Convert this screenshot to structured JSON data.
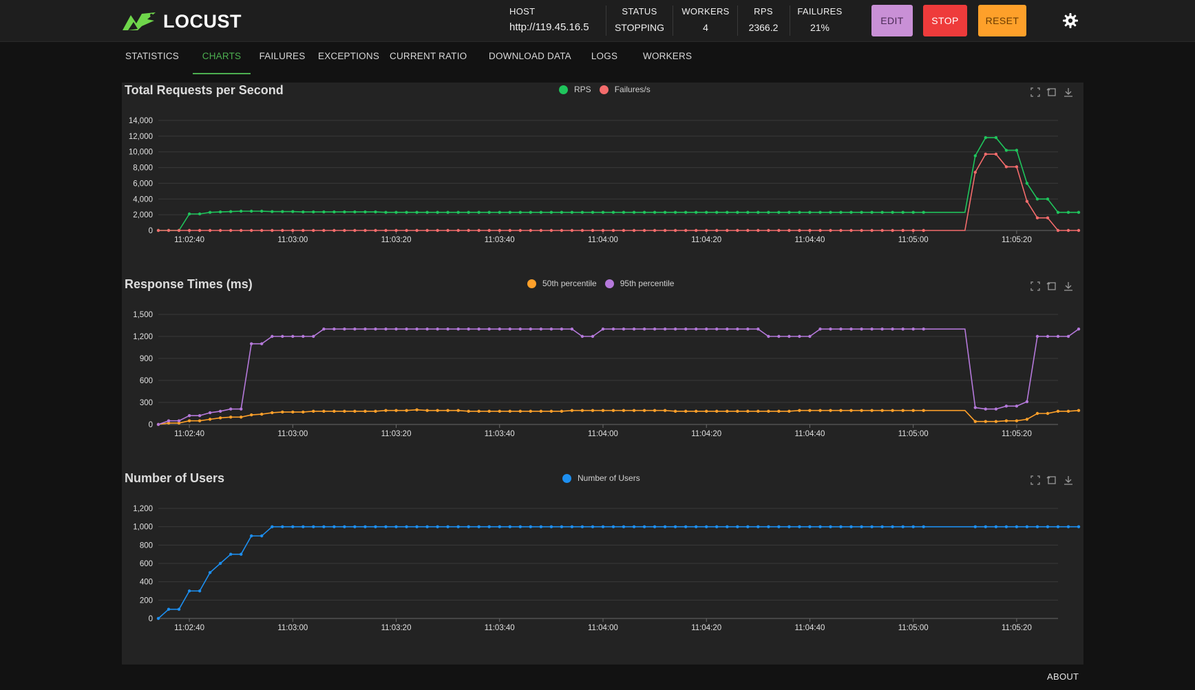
{
  "app": {
    "name": "LOCUST",
    "logo_icon": "locust-grasshopper-icon",
    "brand_color": "#6fd64b"
  },
  "header": {
    "stats": [
      {
        "label": "HOST",
        "value": "http://119.45.16.5"
      },
      {
        "label": "STATUS",
        "value": "STOPPING"
      },
      {
        "label": "WORKERS",
        "value": "4"
      },
      {
        "label": "RPS",
        "value": "2366.2"
      },
      {
        "label": "FAILURES",
        "value": "21%"
      }
    ],
    "buttons": {
      "edit": {
        "label": "EDIT",
        "color": "#c990d6"
      },
      "stop": {
        "label": "STOP",
        "color": "#ee3b3b"
      },
      "reset": {
        "label": "RESET",
        "color": "#fea02a"
      }
    },
    "theme_icon": "gear-icon"
  },
  "tabs": [
    {
      "label": "STATISTICS",
      "active": false
    },
    {
      "label": "CHARTS",
      "active": true
    },
    {
      "label": "FAILURES",
      "active": false
    },
    {
      "label": "EXCEPTIONS",
      "active": false
    },
    {
      "label": "CURRENT RATIO",
      "active": false
    },
    {
      "label": "DOWNLOAD DATA",
      "active": false
    },
    {
      "label": "LOGS",
      "active": false
    },
    {
      "label": "WORKERS",
      "active": false
    }
  ],
  "toolbox_icons": [
    "zoom-icon",
    "zoom-reset-icon",
    "download-icon"
  ],
  "footer": {
    "about_label": "ABOUT"
  },
  "chart_data": [
    {
      "type": "line",
      "title": "Total Requests per Second",
      "x_tick_labels": [
        "11:02:40",
        "11:03:00",
        "11:03:20",
        "11:03:40",
        "11:04:00",
        "11:04:20",
        "11:04:40",
        "11:05:00",
        "11:05:20"
      ],
      "x_start": "11:02:34",
      "x_end": "11:05:28",
      "x_interval_seconds": 2,
      "ylim": [
        0,
        14000
      ],
      "y_ticks": [
        "0",
        "2,000",
        "4,000",
        "6,000",
        "8,000",
        "10,000",
        "12,000",
        "14,000"
      ],
      "grid": true,
      "legend_position": "top-center",
      "gap": [
        "11:05:02",
        "11:05:12"
      ],
      "series": [
        {
          "name": "RPS",
          "color": "#1fc55c",
          "values": [
            0,
            0,
            0,
            2100,
            2100,
            2300,
            2350,
            2400,
            2450,
            2450,
            2450,
            2400,
            2400,
            2400,
            2350,
            2350,
            2350,
            2350,
            2350,
            2350,
            2350,
            2350,
            2300,
            2300,
            2300,
            2300,
            2300,
            2300,
            2300,
            2300,
            2300,
            2300,
            2300,
            2300,
            2300,
            2300,
            2300,
            2300,
            2300,
            2300,
            2300,
            2300,
            2300,
            2300,
            2300,
            2300,
            2300,
            2300,
            2300,
            2300,
            2300,
            2300,
            2300,
            2300,
            2300,
            2300,
            2300,
            2300,
            2300,
            2300,
            2300,
            2300,
            2300,
            2300,
            2300,
            2300,
            2300,
            2300,
            2300,
            2300,
            2300,
            2300,
            2300,
            2300,
            2300,
            2300,
            2300,
            2300,
            2300,
            9500,
            11800,
            11800,
            10200,
            10200,
            6000,
            4000,
            4000,
            2300,
            2300,
            2300
          ]
        },
        {
          "name": "Failures/s",
          "color": "#f46c6c",
          "values": [
            0,
            0,
            0,
            0,
            0,
            0,
            0,
            0,
            0,
            0,
            0,
            0,
            0,
            0,
            0,
            0,
            0,
            0,
            0,
            0,
            0,
            0,
            0,
            0,
            0,
            0,
            0,
            0,
            0,
            0,
            0,
            0,
            0,
            0,
            0,
            0,
            0,
            0,
            0,
            0,
            0,
            0,
            0,
            0,
            0,
            0,
            0,
            0,
            0,
            0,
            0,
            0,
            0,
            0,
            0,
            0,
            0,
            0,
            0,
            0,
            0,
            0,
            0,
            0,
            0,
            0,
            0,
            0,
            0,
            0,
            0,
            0,
            0,
            0,
            0,
            0,
            0,
            0,
            0,
            7400,
            9700,
            9700,
            8100,
            8100,
            3700,
            1600,
            1600,
            0,
            0,
            0
          ]
        }
      ]
    },
    {
      "type": "line",
      "title": "Response Times (ms)",
      "x_tick_labels": [
        "11:02:40",
        "11:03:00",
        "11:03:20",
        "11:03:40",
        "11:04:00",
        "11:04:20",
        "11:04:40",
        "11:05:00",
        "11:05:20"
      ],
      "x_start": "11:02:34",
      "x_end": "11:05:28",
      "x_interval_seconds": 2,
      "ylim": [
        0,
        1500
      ],
      "y_ticks": [
        "0",
        "300",
        "600",
        "900",
        "1,200",
        "1,500"
      ],
      "grid": true,
      "legend_position": "top-center",
      "gap": [
        "11:05:02",
        "11:05:12"
      ],
      "series": [
        {
          "name": "50th percentile",
          "color": "#fea02a",
          "values": [
            0,
            20,
            20,
            50,
            50,
            70,
            90,
            100,
            100,
            130,
            140,
            160,
            170,
            170,
            170,
            180,
            180,
            180,
            180,
            180,
            180,
            180,
            190,
            190,
            190,
            200,
            190,
            190,
            190,
            190,
            180,
            180,
            180,
            180,
            180,
            180,
            180,
            180,
            180,
            180,
            190,
            190,
            190,
            190,
            190,
            190,
            190,
            190,
            190,
            190,
            180,
            180,
            180,
            180,
            180,
            180,
            180,
            180,
            180,
            180,
            180,
            180,
            190,
            190,
            190,
            190,
            190,
            190,
            190,
            190,
            190,
            190,
            190,
            190,
            190,
            190,
            190,
            190,
            190,
            40,
            40,
            40,
            50,
            50,
            70,
            150,
            150,
            180,
            180,
            190
          ]
        },
        {
          "name": "95th percentile",
          "color": "#b579db",
          "values": [
            0,
            50,
            50,
            120,
            120,
            160,
            180,
            210,
            210,
            1100,
            1100,
            1200,
            1200,
            1200,
            1200,
            1200,
            1300,
            1300,
            1300,
            1300,
            1300,
            1300,
            1300,
            1300,
            1300,
            1300,
            1300,
            1300,
            1300,
            1300,
            1300,
            1300,
            1300,
            1300,
            1300,
            1300,
            1300,
            1300,
            1300,
            1300,
            1300,
            1200,
            1200,
            1300,
            1300,
            1300,
            1300,
            1300,
            1300,
            1300,
            1300,
            1300,
            1300,
            1300,
            1300,
            1300,
            1300,
            1300,
            1300,
            1200,
            1200,
            1200,
            1200,
            1200,
            1300,
            1300,
            1300,
            1300,
            1300,
            1300,
            1300,
            1300,
            1300,
            1300,
            1300,
            1300,
            1300,
            1300,
            1300,
            230,
            210,
            210,
            250,
            250,
            310,
            1200,
            1200,
            1200,
            1200,
            1300
          ]
        }
      ]
    },
    {
      "type": "line",
      "title": "Number of Users",
      "x_tick_labels": [
        "11:02:40",
        "11:03:00",
        "11:03:20",
        "11:03:40",
        "11:04:00",
        "11:04:20",
        "11:04:40",
        "11:05:00",
        "11:05:20"
      ],
      "x_start": "11:02:34",
      "x_end": "11:05:28",
      "x_interval_seconds": 2,
      "ylim": [
        0,
        1200
      ],
      "y_ticks": [
        "0",
        "200",
        "400",
        "600",
        "800",
        "1,000",
        "1,200"
      ],
      "grid": true,
      "legend_position": "top-center",
      "gap": [
        "11:05:02",
        "11:05:12"
      ],
      "series": [
        {
          "name": "Number of Users",
          "color": "#1d8ff0",
          "values": [
            0,
            100,
            100,
            300,
            300,
            500,
            600,
            700,
            700,
            900,
            900,
            1000,
            1000,
            1000,
            1000,
            1000,
            1000,
            1000,
            1000,
            1000,
            1000,
            1000,
            1000,
            1000,
            1000,
            1000,
            1000,
            1000,
            1000,
            1000,
            1000,
            1000,
            1000,
            1000,
            1000,
            1000,
            1000,
            1000,
            1000,
            1000,
            1000,
            1000,
            1000,
            1000,
            1000,
            1000,
            1000,
            1000,
            1000,
            1000,
            1000,
            1000,
            1000,
            1000,
            1000,
            1000,
            1000,
            1000,
            1000,
            1000,
            1000,
            1000,
            1000,
            1000,
            1000,
            1000,
            1000,
            1000,
            1000,
            1000,
            1000,
            1000,
            1000,
            1000,
            1000,
            1000,
            1000,
            1000,
            1000,
            1000,
            1000,
            1000,
            1000,
            1000,
            1000,
            1000,
            1000,
            1000,
            1000,
            1000
          ]
        }
      ]
    }
  ]
}
